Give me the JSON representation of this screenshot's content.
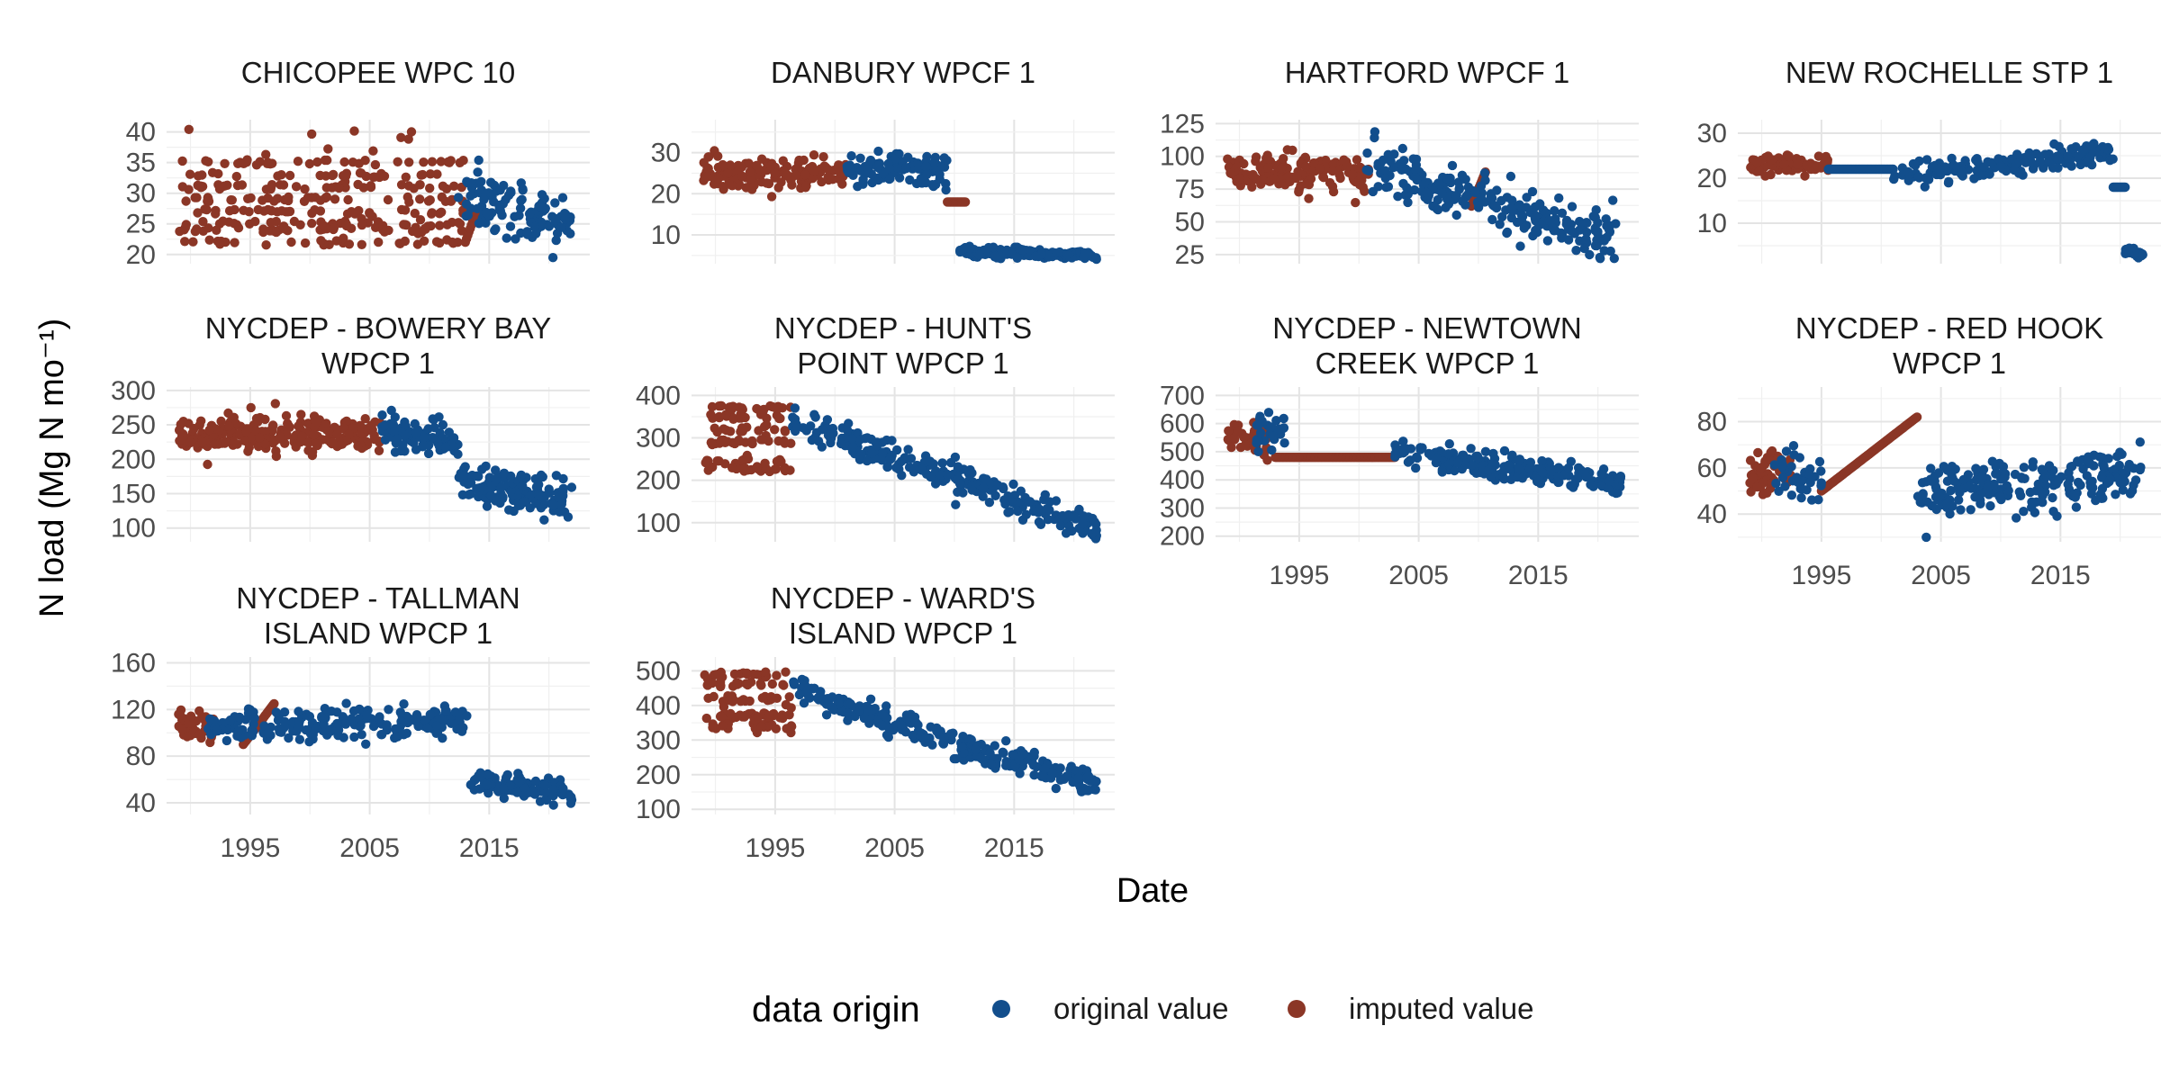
{
  "colors": {
    "original": "#124e8c",
    "imputed": "#8b3626"
  },
  "chart_data": {
    "type": "scatter",
    "facet_layout": "wrap, 4 columns, 3 rows, shared x axis, free y axes",
    "xlabel": "Date",
    "ylabel": "N load (Mg N mo⁻¹)",
    "x_ticks": [
      "1995",
      "2005",
      "2015"
    ],
    "xlim": [
      "1988-01",
      "2023-06"
    ],
    "legend": {
      "position": "bottom",
      "title": "data origin",
      "entries": [
        "original value",
        "imputed value"
      ]
    },
    "facets": [
      {
        "title_lines": [
          "CHICOPEE WPC 10"
        ],
        "ylim": [
          18.5,
          42
        ],
        "y_ticks": [
          20,
          25,
          30,
          35,
          40
        ],
        "series": [
          {
            "name": "imputed value",
            "segments": [
              {
                "from": "1989-01",
                "to": "2012-12",
                "mode": "scatter",
                "y": [
                  21.5,
                  41
                ],
                "levels": [
                  22,
                  24,
                  25,
                  27,
                  29,
                  31,
                  33,
                  35
                ],
                "n": 300,
                "seed": 11
              },
              {
                "from": "2013-01",
                "to": "2013-12",
                "mode": "line",
                "y": [
                  22,
                  27
                ],
                "n": 10
              }
            ]
          },
          {
            "name": "original value",
            "segments": [
              {
                "from": "2012-06",
                "to": "2021-12",
                "mode": "scatter",
                "y": [
                  19.5,
                  41
                ],
                "center": [
                  30,
                  25
                ],
                "spread": 4.5,
                "n": 110,
                "seed": 12
              }
            ]
          }
        ]
      },
      {
        "title_lines": [
          "DANBURY WPCF 1"
        ],
        "ylim": [
          3,
          38
        ],
        "y_ticks": [
          10,
          20,
          30
        ],
        "series": [
          {
            "name": "imputed value",
            "segments": [
              {
                "from": "1989-01",
                "to": "2000-12",
                "mode": "scatter",
                "y": [
                  16,
                  36
                ],
                "center": [
                  25,
                  25
                ],
                "spread": 3.5,
                "n": 150,
                "seed": 21
              },
              {
                "from": "2009-06",
                "to": "2010-12",
                "mode": "line",
                "y": [
                  18,
                  8
                ],
                "n": 18
              }
            ]
          },
          {
            "name": "original value",
            "segments": [
              {
                "from": "2001-01",
                "to": "2009-06",
                "mode": "scatter",
                "y": [
                  15,
                  37
                ],
                "center": [
                  26,
                  26
                ],
                "spread": 3.5,
                "n": 100,
                "seed": 22
              },
              {
                "from": "2010-06",
                "to": "2021-12",
                "mode": "scatter",
                "y": [
                  4,
                  10
                ],
                "center": [
                  6,
                  5
                ],
                "spread": 1,
                "n": 140,
                "seed": 23
              }
            ]
          }
        ]
      },
      {
        "title_lines": [
          "HARTFORD WPCF 1"
        ],
        "ylim": [
          18,
          128
        ],
        "y_ticks": [
          25,
          50,
          75,
          100,
          125
        ],
        "series": [
          {
            "name": "imputed value",
            "segments": [
              {
                "from": "1989-01",
                "to": "2000-12",
                "mode": "scatter",
                "y": [
                  55,
                  108
                ],
                "center": [
                  88,
                  88
                ],
                "spread": 12,
                "n": 160,
                "seed": 31
              },
              {
                "from": "2009-06",
                "to": "2010-08",
                "mode": "line",
                "y": [
                  62,
                  88
                ],
                "n": 15
              }
            ]
          },
          {
            "name": "original value",
            "segments": [
              {
                "from": "2000-06",
                "to": "2021-12",
                "mode": "scatter",
                "y": [
                  22,
                  124
                ],
                "center": [
                  92,
                  35
                ],
                "spread": 16,
                "n": 230,
                "seed": 32
              }
            ]
          }
        ]
      },
      {
        "title_lines": [
          "NEW ROCHELLE STP 1"
        ],
        "ylim": [
          1,
          33
        ],
        "y_ticks": [
          10,
          20,
          30
        ],
        "series": [
          {
            "name": "imputed value",
            "segments": [
              {
                "from": "1989-01",
                "to": "1995-08",
                "mode": "scatter",
                "y": [
                  19,
                  27
                ],
                "center": [
                  23,
                  23
                ],
                "spread": 1.8,
                "n": 90,
                "seed": 41
              }
            ]
          },
          {
            "name": "original value",
            "segments": [
              {
                "from": "1995-08",
                "to": "2001-01",
                "mode": "line",
                "y": [
                  22,
                  20
                ],
                "n": 50
              },
              {
                "from": "2001-01",
                "to": "2019-06",
                "mode": "scatter",
                "y": [
                  18,
                  32
                ],
                "center": [
                  20,
                  26
                ],
                "spread": 2.2,
                "n": 170,
                "seed": 42
              },
              {
                "from": "2019-06",
                "to": "2020-06",
                "mode": "line",
                "y": [
                  18,
                  5
                ],
                "n": 12
              },
              {
                "from": "2020-06",
                "to": "2021-12",
                "mode": "scatter",
                "y": [
                  2,
                  6
                ],
                "center": [
                  4,
                  3
                ],
                "spread": 0.6,
                "n": 50,
                "seed": 43
              }
            ]
          }
        ]
      },
      {
        "title_lines": [
          "NYCDEP - BOWERY BAY",
          "WPCP 1"
        ],
        "ylim": [
          80,
          305
        ],
        "y_ticks": [
          100,
          150,
          200,
          250,
          300
        ],
        "series": [
          {
            "name": "imputed value",
            "segments": [
              {
                "from": "1989-01",
                "to": "2005-12",
                "mode": "scatter",
                "y": [
                  180,
                  300
                ],
                "center": [
                  235,
                  235
                ],
                "spread": 25,
                "n": 240,
                "seed": 51
              }
            ]
          },
          {
            "name": "original value",
            "segments": [
              {
                "from": "2006-01",
                "to": "2012-06",
                "mode": "scatter",
                "y": [
                  190,
                  300
                ],
                "center": [
                  245,
                  225
                ],
                "spread": 22,
                "n": 80,
                "seed": 52
              },
              {
                "from": "2012-06",
                "to": "2021-12",
                "mode": "scatter",
                "y": [
                  85,
                  225
                ],
                "center": [
                  170,
                  140
                ],
                "spread": 25,
                "n": 140,
                "seed": 53
              }
            ]
          }
        ]
      },
      {
        "title_lines": [
          "NYCDEP - HUNT'S",
          "POINT WPCP 1"
        ],
        "ylim": [
          55,
          420
        ],
        "y_ticks": [
          100,
          200,
          300,
          400
        ],
        "series": [
          {
            "name": "imputed value",
            "segments": [
              {
                "from": "1989-01",
                "to": "1996-06",
                "mode": "scatter",
                "y": [
                  220,
                  385
                ],
                "levels": [
                  225,
                  245,
                  290,
                  320,
                  350,
                  370
                ],
                "n": 120,
                "seed": 61
              }
            ]
          },
          {
            "name": "original value",
            "segments": [
              {
                "from": "1996-06",
                "to": "2021-12",
                "mode": "scatter",
                "y": [
                  60,
                  405
                ],
                "center": [
                  340,
                  90
                ],
                "spread": 30,
                "n": 260,
                "seed": 62
              }
            ]
          }
        ]
      },
      {
        "title_lines": [
          "NYCDEP - NEWTOWN",
          "CREEK WPCP 1"
        ],
        "ylim": [
          180,
          730
        ],
        "y_ticks": [
          200,
          300,
          400,
          500,
          600,
          700
        ],
        "series": [
          {
            "name": "imputed value",
            "segments": [
              {
                "from": "1989-01",
                "to": "1992-06",
                "mode": "scatter",
                "y": [
                  470,
                  720
                ],
                "center": [
                  560,
                  540
                ],
                "spread": 60,
                "n": 50,
                "seed": 71
              },
              {
                "from": "1993-01",
                "to": "2003-01",
                "mode": "line",
                "y": [
                  480,
                  480
                ],
                "n": 100
              }
            ]
          },
          {
            "name": "original value",
            "segments": [
              {
                "from": "1991-06",
                "to": "1994-01",
                "mode": "scatter",
                "y": [
                  440,
                  720
                ],
                "center": [
                  560,
                  580
                ],
                "spread": 60,
                "n": 30,
                "seed": 72
              },
              {
                "from": "2003-01",
                "to": "2021-12",
                "mode": "scatter",
                "y": [
                  220,
                  660
                ],
                "center": [
                  500,
                  390
                ],
                "spread": 40,
                "n": 220,
                "seed": 73
              }
            ]
          }
        ]
      },
      {
        "title_lines": [
          "NYCDEP - RED HOOK",
          "WPCP 1"
        ],
        "ylim": [
          28,
          95
        ],
        "y_ticks": [
          40,
          60,
          80
        ],
        "series": [
          {
            "name": "imputed value",
            "segments": [
              {
                "from": "1989-01",
                "to": "1992-06",
                "mode": "scatter",
                "y": [
                  33,
                  80
                ],
                "center": [
                  55,
                  60
                ],
                "spread": 9,
                "n": 60,
                "seed": 81
              },
              {
                "from": "1995-01",
                "to": "2003-01",
                "mode": "line",
                "y": [
                  50,
                  82
                ],
                "n": 90
              }
            ]
          },
          {
            "name": "original value",
            "segments": [
              {
                "from": "1991-01",
                "to": "1995-01",
                "mode": "scatter",
                "y": [
                  30,
                  80
                ],
                "center": [
                  60,
                  55
                ],
                "spread": 10,
                "n": 40,
                "seed": 82
              },
              {
                "from": "2003-01",
                "to": "2021-12",
                "mode": "scatter",
                "y": [
                  30,
                  92
                ],
                "center": [
                  50,
                  57
                ],
                "spread": 10,
                "n": 230,
                "seed": 83
              }
            ]
          }
        ]
      },
      {
        "title_lines": [
          "NYCDEP - TALLMAN",
          "ISLAND WPCP 1"
        ],
        "ylim": [
          30,
          165
        ],
        "y_ticks": [
          40,
          80,
          120,
          160
        ],
        "series": [
          {
            "name": "imputed value",
            "segments": [
              {
                "from": "1989-01",
                "to": "1991-12",
                "mode": "scatter",
                "y": [
                  80,
                  142
                ],
                "center": [
                  108,
                  108
                ],
                "spread": 12,
                "n": 45,
                "seed": 91
              },
              {
                "from": "1994-06",
                "to": "1997-01",
                "mode": "line",
                "y": [
                  90,
                  125
                ],
                "n": 25
              }
            ]
          },
          {
            "name": "original value",
            "segments": [
              {
                "from": "1991-06",
                "to": "2013-06",
                "mode": "scatter",
                "y": [
                  72,
                  158
                ],
                "center": [
                  105,
                  110
                ],
                "spread": 14,
                "n": 220,
                "seed": 92
              },
              {
                "from": "2013-06",
                "to": "2021-12",
                "mode": "scatter",
                "y": [
                  36,
                  78
                ],
                "center": [
                  58,
                  48
                ],
                "spread": 8,
                "n": 110,
                "seed": 93
              }
            ]
          }
        ]
      },
      {
        "title_lines": [
          "NYCDEP - WARD'S",
          "ISLAND WPCP 1"
        ],
        "ylim": [
          85,
          540
        ],
        "y_ticks": [
          100,
          200,
          300,
          400,
          500
        ],
        "series": [
          {
            "name": "imputed value",
            "segments": [
              {
                "from": "1989-01",
                "to": "1996-06",
                "mode": "scatter",
                "y": [
                  320,
                  500
                ],
                "levels": [
                  340,
                  370,
                  420,
                  460,
                  490
                ],
                "n": 130,
                "seed": 101
              }
            ]
          },
          {
            "name": "original value",
            "segments": [
              {
                "from": "1996-06",
                "to": "2021-12",
                "mode": "scatter",
                "y": [
                  110,
                  525
                ],
                "center": [
                  450,
                  160
                ],
                "spread": 35,
                "n": 280,
                "seed": 102
              }
            ]
          }
        ]
      }
    ]
  }
}
